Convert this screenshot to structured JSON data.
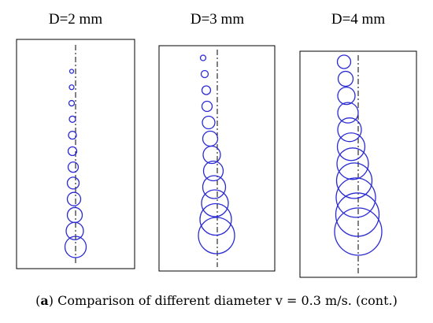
{
  "panels": [
    {
      "title": "D=2 mm",
      "bubbles": [
        {
          "dx": -5,
          "d": 5
        },
        {
          "dx": -5,
          "d": 6
        },
        {
          "dx": -5,
          "d": 7
        },
        {
          "dx": -4,
          "d": 8
        },
        {
          "dx": -4,
          "d": 10
        },
        {
          "dx": -4,
          "d": 11
        },
        {
          "dx": -3,
          "d": 13
        },
        {
          "dx": -3,
          "d": 15
        },
        {
          "dx": -2,
          "d": 17
        },
        {
          "dx": -1,
          "d": 19
        },
        {
          "dx": -1,
          "d": 22
        },
        {
          "dx": 0,
          "d": 27
        }
      ]
    },
    {
      "title": "D=3 mm",
      "bubbles": [
        {
          "dx": -18,
          "d": 7
        },
        {
          "dx": -16,
          "d": 9
        },
        {
          "dx": -14,
          "d": 11
        },
        {
          "dx": -13,
          "d": 13
        },
        {
          "dx": -11,
          "d": 16
        },
        {
          "dx": -9,
          "d": 19
        },
        {
          "dx": -7,
          "d": 22
        },
        {
          "dx": -5,
          "d": 25
        },
        {
          "dx": -4,
          "d": 29
        },
        {
          "dx": -3,
          "d": 34
        },
        {
          "dx": -2,
          "d": 40
        },
        {
          "dx": -1,
          "d": 46
        }
      ]
    },
    {
      "title": "D=4 mm",
      "bubbles": [
        {
          "dx": -18,
          "d": 17
        },
        {
          "dx": -16,
          "d": 19
        },
        {
          "dx": -15,
          "d": 22
        },
        {
          "dx": -13,
          "d": 26
        },
        {
          "dx": -11,
          "d": 30
        },
        {
          "dx": -9,
          "d": 35
        },
        {
          "dx": -7,
          "d": 40
        },
        {
          "dx": -5,
          "d": 45
        },
        {
          "dx": -3,
          "d": 50
        },
        {
          "dx": -1,
          "d": 55
        },
        {
          "dx": 0,
          "d": 60
        }
      ]
    }
  ],
  "colors": {
    "bubble": "#2b2bd4",
    "frame": "#000000",
    "axis": "#000000"
  },
  "caption": {
    "label": "a",
    "text": " Comparison of different diameter v = 0.3 m/s. (cont.)"
  }
}
